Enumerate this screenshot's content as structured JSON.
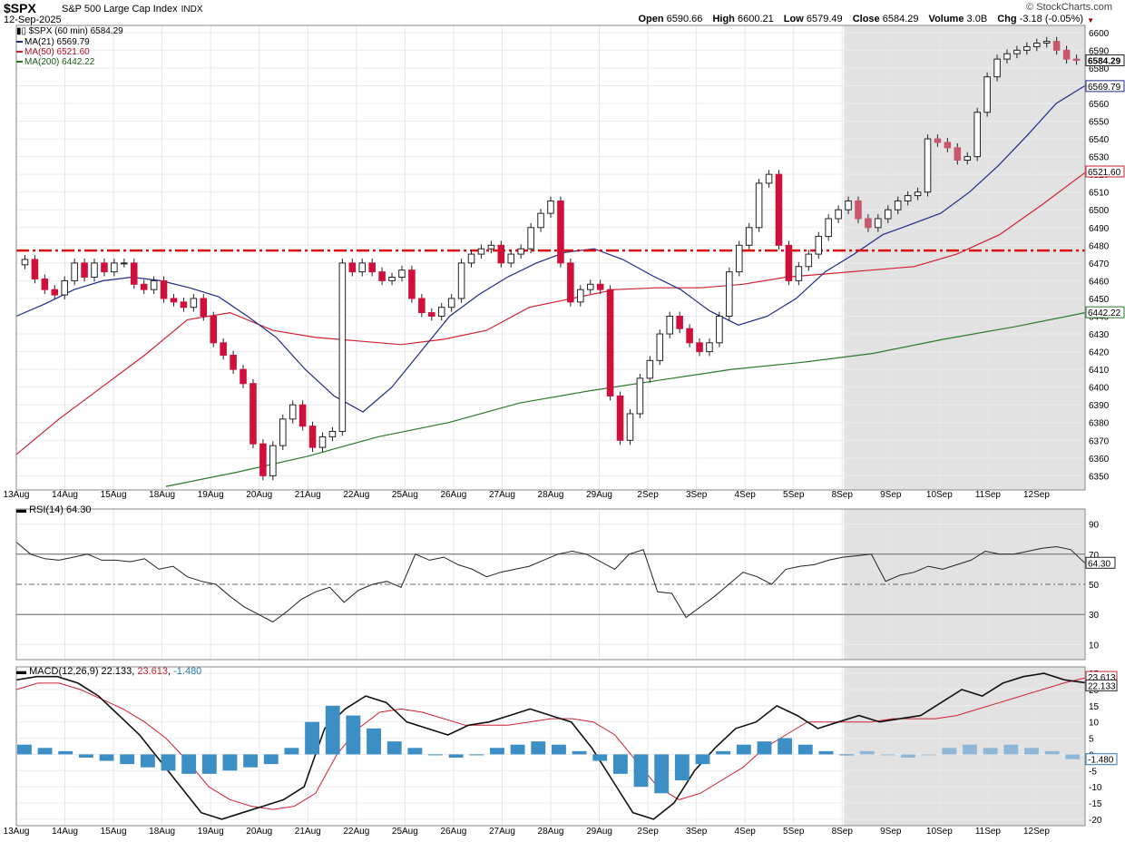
{
  "header": {
    "ticker": "$SPX",
    "name": "S&P 500 Large Cap Index",
    "exchange": "INDX",
    "date": "12-Sep-2025",
    "brand": "© StockCharts.com",
    "ohlc": {
      "open_label": "Open",
      "open": "6590.66",
      "high_label": "High",
      "high": "6600.21",
      "low_label": "Low",
      "low": "6579.49",
      "close_label": "Close",
      "close": "6584.29",
      "volume_label": "Volume",
      "volume": "3.0B",
      "chg_label": "Chg",
      "chg": "-3.18 (-0.05%)"
    }
  },
  "legend": {
    "main": "$SPX (60 min) 6584.29",
    "ma21": "MA(21) 6569.79",
    "ma50": "MA(50) 6521.60",
    "ma200": "MA(200) 6442.22",
    "rsi": "RSI(14) 64.30",
    "macd_label": "MACD(12,26,9)",
    "macd_v1": "22.133",
    "macd_v2": "23.613",
    "macd_v3": "-1.480"
  },
  "colors": {
    "up": "#ffffff",
    "down": "#d0103a",
    "down_shaded": "#c8566d",
    "ma21": "#1e2a8c",
    "ma50": "#d02030",
    "ma200": "#2a7a2a",
    "resistance": "#e01010",
    "shade": "#e2e2e2",
    "macd_hist": "#3c8fc4"
  },
  "chart_data": [
    {
      "type": "candlestick",
      "title": "$SPX (60 min)",
      "x_labels": [
        "13Aug",
        "14Aug",
        "15Aug",
        "18Aug",
        "19Aug",
        "20Aug",
        "21Aug",
        "22Aug",
        "25Aug",
        "26Aug",
        "27Aug",
        "28Aug",
        "29Aug",
        "2Sep",
        "3Sep",
        "4Sep",
        "5Sep",
        "8Sep",
        "9Sep",
        "10Sep",
        "11Sep",
        "12Sep"
      ],
      "y_ticks": [
        6350,
        6360,
        6370,
        6380,
        6390,
        6400,
        6410,
        6420,
        6430,
        6440,
        6450,
        6460,
        6470,
        6480,
        6490,
        6500,
        6510,
        6520,
        6530,
        6540,
        6550,
        6560,
        6570,
        6580,
        6590,
        6600
      ],
      "ylim": [
        6342,
        6604
      ],
      "resistance_level": 6477,
      "shaded_from": "8Sep",
      "labels": {
        "last": "6584.29",
        "ma21": "6569.79",
        "ma50": "6521.60",
        "ma200": "6442.22"
      },
      "closes": [
        6472,
        6461,
        6455,
        6452,
        6460,
        6470,
        6462,
        6470,
        6465,
        6470,
        6470,
        6458,
        6455,
        6460,
        6450,
        6448,
        6445,
        6450,
        6440,
        6425,
        6418,
        6410,
        6402,
        6368,
        6350,
        6367,
        6382,
        6390,
        6378,
        6366,
        6372,
        6375,
        6470,
        6465,
        6470,
        6465,
        6460,
        6462,
        6466,
        6450,
        6442,
        6440,
        6445,
        6450,
        6470,
        6475,
        6478,
        6480,
        6470,
        6475,
        6478,
        6490,
        6498,
        6505,
        6470,
        6448,
        6455,
        6458,
        6455,
        6395,
        6370,
        6385,
        6405,
        6415,
        6430,
        6440,
        6433,
        6425,
        6420,
        6425,
        6440,
        6465,
        6480,
        6490,
        6515,
        6520,
        6480,
        6460,
        6468,
        6475,
        6485,
        6495,
        6500,
        6505,
        6495,
        6490,
        6495,
        6500,
        6505,
        6508,
        6510,
        6540,
        6538,
        6535,
        6528,
        6530,
        6555,
        6575,
        6585,
        6588,
        6590,
        6592,
        6594,
        6595,
        6590,
        6585,
        6584.29
      ],
      "ma21": [
        6440,
        6447,
        6455,
        6460,
        6462,
        6460,
        6456,
        6451,
        6440,
        6428,
        6410,
        6395,
        6386,
        6400,
        6420,
        6440,
        6452,
        6462,
        6470,
        6476,
        6478,
        6472,
        6463,
        6455,
        6443,
        6435,
        6440,
        6450,
        6465,
        6475,
        6486,
        6492,
        6498,
        6510,
        6525,
        6542,
        6560,
        6570
      ],
      "ma50": [
        6362,
        6382,
        6400,
        6418,
        6438,
        6442,
        6432,
        6428,
        6426,
        6424,
        6427,
        6432,
        6445,
        6450,
        6455,
        6456,
        6456,
        6458,
        6462,
        6464,
        6466,
        6468,
        6475,
        6486,
        6503,
        6521
      ],
      "ma200": [
        6344,
        6352,
        6361,
        6372,
        6380,
        6391,
        6398,
        6404,
        6410,
        6414,
        6419,
        6427,
        6434,
        6442
      ]
    },
    {
      "type": "line",
      "title": "RSI(14)",
      "y_ticks": [
        10,
        30,
        50,
        70,
        90
      ],
      "ylim": [
        0,
        100
      ],
      "levels": [
        30,
        50,
        70
      ],
      "label": "64.30",
      "values": [
        78,
        70,
        67,
        66,
        68,
        70,
        66,
        66,
        65,
        67,
        60,
        62,
        55,
        52,
        50,
        42,
        35,
        30,
        25,
        32,
        40,
        45,
        48,
        38,
        46,
        50,
        52,
        48,
        70,
        66,
        68,
        63,
        60,
        55,
        58,
        60,
        62,
        66,
        70,
        72,
        70,
        65,
        60,
        70,
        73,
        45,
        44,
        28,
        35,
        42,
        50,
        58,
        55,
        50,
        60,
        62,
        63,
        66,
        68,
        69,
        70,
        52,
        56,
        58,
        62,
        60,
        63,
        66,
        72,
        70,
        70,
        72,
        74,
        75,
        73,
        64
      ]
    },
    {
      "type": "bar+line",
      "title": "MACD(12,26,9)",
      "y_ticks": [
        -20,
        -15,
        -10,
        -5,
        0,
        5,
        10,
        15,
        20,
        25
      ],
      "ylim": [
        -22,
        27
      ],
      "labels": {
        "macd": "22.133",
        "signal": "23.613",
        "histogram": "-1.480"
      },
      "macd": [
        23,
        24,
        24,
        22,
        18,
        12,
        6,
        -2,
        -10,
        -18,
        -20,
        -18,
        -16,
        -14,
        -10,
        8,
        14,
        18,
        16,
        10,
        8,
        6,
        9,
        10,
        12,
        14,
        12,
        10,
        2,
        -8,
        -18,
        -20,
        -15,
        -5,
        2,
        8,
        10,
        15,
        12,
        8,
        10,
        12,
        10,
        11,
        12,
        16,
        20,
        18,
        22,
        24,
        25,
        23,
        22.133
      ],
      "signal": [
        20,
        22,
        22,
        20,
        17,
        14,
        10,
        5,
        -2,
        -10,
        -14,
        -16,
        -17,
        -16,
        -12,
        0,
        8,
        13,
        14,
        13,
        11,
        9,
        9,
        9,
        10,
        11,
        11,
        10,
        6,
        -2,
        -10,
        -14,
        -12,
        -8,
        -4,
        2,
        6,
        10,
        10,
        10,
        10,
        11,
        11,
        11,
        12,
        14,
        16,
        18,
        20,
        22,
        23.613
      ],
      "histogram": [
        3,
        2,
        1,
        -1,
        -2,
        -3,
        -4,
        -5,
        -6,
        -6,
        -5,
        -4,
        -3,
        2,
        10,
        15,
        12,
        8,
        4,
        2,
        0,
        -1,
        0,
        2,
        3,
        4,
        3,
        1,
        -2,
        -6,
        -10,
        -12,
        -8,
        -3,
        1,
        3,
        4,
        5,
        3,
        1,
        0,
        1,
        0,
        -1,
        0,
        2,
        3,
        2,
        3,
        2,
        1,
        -1.48
      ]
    }
  ]
}
